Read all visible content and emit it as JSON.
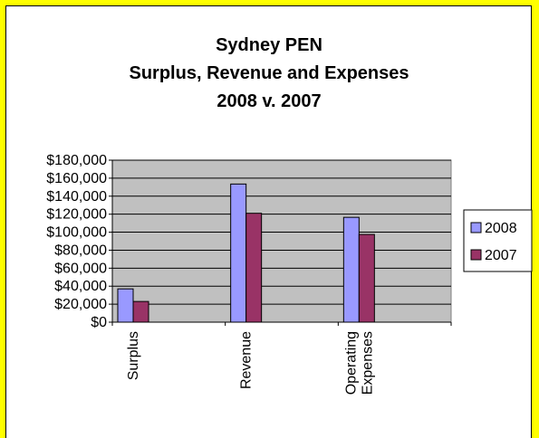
{
  "chart_data": {
    "type": "bar",
    "title_lines": [
      "Sydney PEN",
      "Surplus, Revenue and Expenses",
      "2008 v. 2007"
    ],
    "categories": [
      [
        "Surplus"
      ],
      [
        "Revenue"
      ],
      [
        "Operating",
        "Expenses"
      ]
    ],
    "series": [
      {
        "name": "2008",
        "values": [
          37000,
          153500,
          116500
        ],
        "color": "#9999ff"
      },
      {
        "name": "2007",
        "values": [
          23000,
          121000,
          97500
        ],
        "color": "#993366"
      }
    ],
    "ylim": [
      0,
      180000
    ],
    "ytick_step": 20000,
    "ytick_labels": [
      "$0",
      "$20,000",
      "$40,000",
      "$60,000",
      "$80,000",
      "$100,000",
      "$120,000",
      "$140,000",
      "$160,000",
      "$180,000"
    ],
    "grid": true,
    "legend_position": "right",
    "plot_background": "#c0c0c0"
  },
  "colors": {
    "frame_background": "#ffff00",
    "chart_background": "#ffffff"
  }
}
